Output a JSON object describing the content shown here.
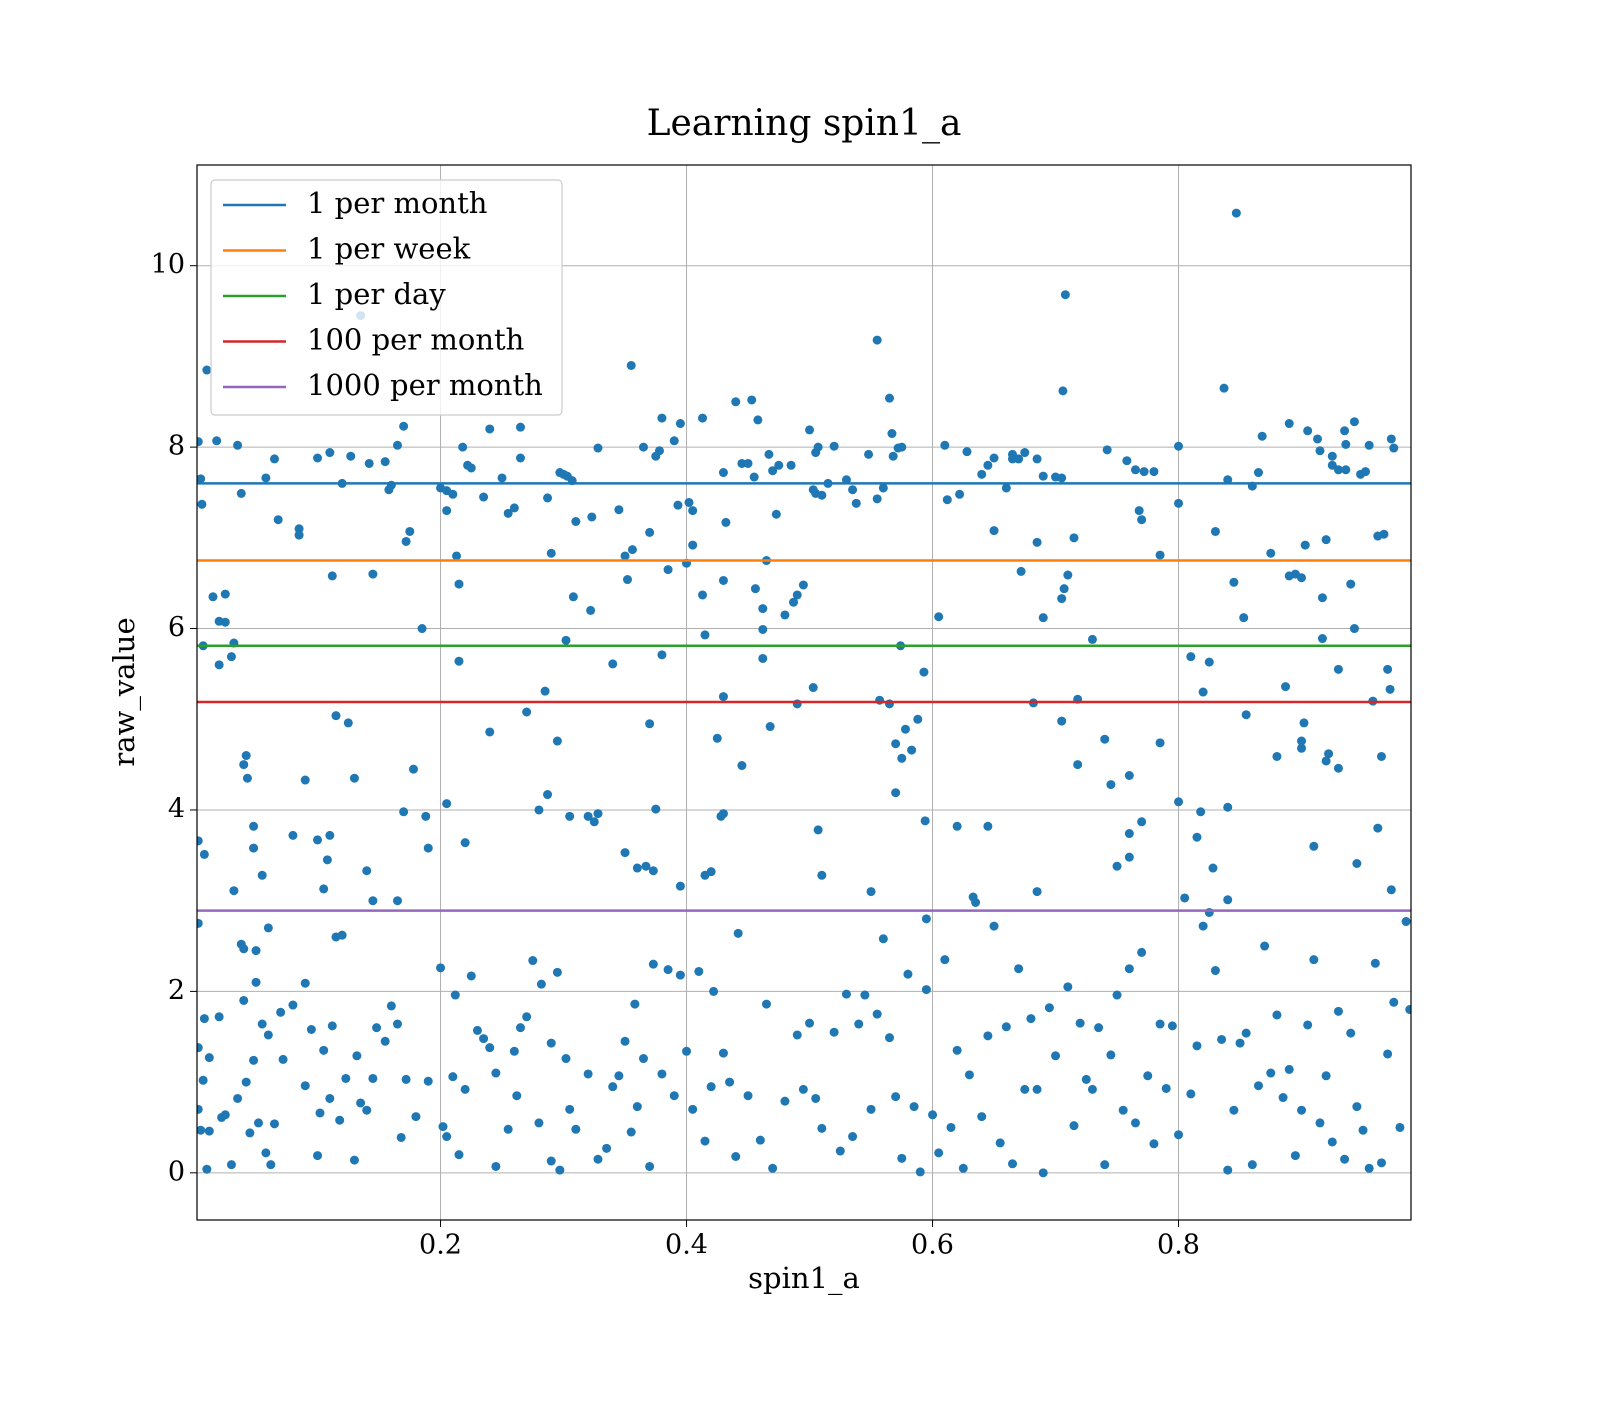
{
  "chart_data": {
    "type": "scatter",
    "title": "Learning spin1_a",
    "xlabel": "spin1_a",
    "ylabel": "raw_value",
    "xlim": [
      0.002,
      0.989
    ],
    "ylim": [
      -0.52,
      11.11
    ],
    "xticks": [
      0.2,
      0.4,
      0.6,
      0.8
    ],
    "yticks": [
      0,
      2,
      4,
      6,
      8,
      10
    ],
    "grid": true,
    "legend": "upper left",
    "color": "#1f77b4",
    "x": [
      0.003,
      0.005,
      0.006,
      0.01,
      0.015,
      0.018,
      0.02,
      0.02,
      0.025,
      0.025,
      0.03,
      0.032,
      0.035,
      0.038,
      0.007,
      0.008,
      0.003,
      0.003,
      0.04,
      0.042,
      0.043,
      0.048,
      0.048,
      0.032,
      0.038,
      0.04,
      0.05,
      0.055,
      0.06,
      0.058,
      0.065,
      0.068,
      0.085,
      0.085,
      0.08,
      0.09,
      0.1,
      0.11,
      0.112,
      0.115,
      0.125,
      0.12,
      0.127,
      0.135,
      0.13,
      0.11,
      0.108,
      0.105,
      0.1,
      0.115,
      0.12,
      0.14,
      0.145,
      0.142,
      0.145,
      0.155,
      0.16,
      0.158,
      0.165,
      0.17,
      0.172,
      0.175,
      0.178,
      0.185,
      0.188,
      0.19,
      0.17,
      0.165,
      0.2,
      0.205,
      0.21,
      0.205,
      0.213,
      0.215,
      0.215,
      0.218,
      0.222,
      0.225,
      0.22,
      0.205,
      0.235,
      0.24,
      0.25,
      0.255,
      0.26,
      0.265,
      0.265,
      0.27,
      0.24,
      0.28,
      0.287,
      0.285,
      0.287,
      0.29,
      0.297,
      0.3,
      0.303,
      0.307,
      0.308,
      0.31,
      0.302,
      0.295,
      0.305,
      0.32,
      0.325,
      0.328,
      0.322,
      0.323,
      0.328,
      0.345,
      0.35,
      0.352,
      0.355,
      0.356,
      0.34,
      0.35,
      0.36,
      0.367,
      0.373,
      0.37,
      0.375,
      0.365,
      0.37,
      0.375,
      0.378,
      0.38,
      0.38,
      0.385,
      0.39,
      0.393,
      0.395,
      0.4,
      0.402,
      0.405,
      0.405,
      0.395,
      0.413,
      0.413,
      0.415,
      0.415,
      0.42,
      0.425,
      0.428,
      0.43,
      0.43,
      0.43,
      0.432,
      0.43,
      0.44,
      0.445,
      0.445,
      0.45,
      0.453,
      0.455,
      0.456,
      0.458,
      0.462,
      0.462,
      0.462,
      0.465,
      0.467,
      0.468,
      0.47,
      0.473,
      0.475,
      0.48,
      0.485,
      0.487,
      0.49,
      0.49,
      0.495,
      0.5,
      0.503,
      0.505,
      0.505,
      0.507,
      0.51,
      0.503,
      0.507,
      0.51,
      0.515,
      0.52,
      0.53,
      0.535,
      0.538,
      0.548,
      0.55,
      0.555,
      0.555,
      0.557,
      0.56,
      0.565,
      0.565,
      0.567,
      0.568,
      0.57,
      0.57,
      0.572,
      0.574,
      0.575,
      0.575,
      0.578,
      0.583,
      0.588,
      0.593,
      0.594,
      0.595,
      0.605,
      0.61,
      0.612,
      0.622,
      0.62,
      0.628,
      0.633,
      0.64,
      0.645,
      0.645,
      0.65,
      0.65,
      0.66,
      0.665,
      0.665,
      0.67,
      0.672,
      0.675,
      0.685,
      0.685,
      0.682,
      0.685,
      0.69,
      0.69,
      0.7,
      0.705,
      0.705,
      0.707,
      0.708,
      0.706,
      0.71,
      0.715,
      0.705,
      0.718,
      0.718,
      0.73,
      0.74,
      0.742,
      0.745,
      0.75,
      0.758,
      0.76,
      0.76,
      0.76,
      0.765,
      0.768,
      0.77,
      0.77,
      0.772,
      0.78,
      0.785,
      0.785,
      0.8,
      0.8,
      0.8,
      0.81,
      0.815,
      0.818,
      0.82,
      0.825,
      0.828,
      0.83,
      0.837,
      0.84,
      0.84,
      0.84,
      0.845,
      0.847,
      0.853,
      0.855,
      0.86,
      0.865,
      0.868,
      0.875,
      0.88,
      0.887,
      0.89,
      0.89,
      0.895,
      0.9,
      0.9,
      0.902,
      0.9,
      0.903,
      0.905,
      0.91,
      0.913,
      0.915,
      0.917,
      0.917,
      0.92,
      0.92,
      0.922,
      0.925,
      0.925,
      0.93,
      0.93,
      0.93,
      0.935,
      0.936,
      0.936,
      0.94,
      0.943,
      0.943,
      0.945,
      0.948,
      0.952,
      0.955,
      0.958,
      0.962,
      0.962,
      0.965,
      0.967,
      0.97,
      0.972,
      0.973,
      0.975,
      0.973,
      0.985,
      0.988,
      0.003,
      0.003,
      0.005,
      0.007,
      0.008,
      0.01,
      0.012,
      0.012,
      0.02,
      0.022,
      0.025,
      0.03,
      0.035,
      0.04,
      0.042,
      0.045,
      0.048,
      0.05,
      0.052,
      0.055,
      0.058,
      0.06,
      0.062,
      0.065,
      0.07,
      0.072,
      0.08,
      0.09,
      0.09,
      0.095,
      0.1,
      0.102,
      0.105,
      0.11,
      0.112,
      0.118,
      0.123,
      0.13,
      0.132,
      0.135,
      0.14,
      0.145,
      0.148,
      0.155,
      0.16,
      0.165,
      0.168,
      0.172,
      0.18,
      0.19,
      0.2,
      0.202,
      0.205,
      0.21,
      0.212,
      0.215,
      0.22,
      0.225,
      0.23,
      0.235,
      0.24,
      0.245,
      0.245,
      0.255,
      0.26,
      0.262,
      0.265,
      0.27,
      0.275,
      0.28,
      0.282,
      0.29,
      0.29,
      0.295,
      0.297,
      0.302,
      0.305,
      0.31,
      0.32,
      0.328,
      0.335,
      0.34,
      0.345,
      0.35,
      0.355,
      0.358,
      0.36,
      0.365,
      0.37,
      0.373,
      0.38,
      0.385,
      0.39,
      0.395,
      0.4,
      0.405,
      0.41,
      0.415,
      0.42,
      0.422,
      0.43,
      0.435,
      0.44,
      0.442,
      0.45,
      0.46,
      0.465,
      0.47,
      0.48,
      0.49,
      0.495,
      0.5,
      0.505,
      0.51,
      0.52,
      0.525,
      0.53,
      0.535,
      0.54,
      0.545,
      0.55,
      0.555,
      0.56,
      0.565,
      0.57,
      0.575,
      0.58,
      0.585,
      0.59,
      0.595,
      0.6,
      0.605,
      0.61,
      0.615,
      0.62,
      0.625,
      0.63,
      0.635,
      0.64,
      0.645,
      0.65,
      0.655,
      0.66,
      0.665,
      0.67,
      0.675,
      0.68,
      0.685,
      0.69,
      0.695,
      0.7,
      0.71,
      0.715,
      0.72,
      0.725,
      0.73,
      0.735,
      0.74,
      0.745,
      0.75,
      0.755,
      0.76,
      0.765,
      0.77,
      0.775,
      0.78,
      0.785,
      0.79,
      0.795,
      0.8,
      0.805,
      0.81,
      0.815,
      0.82,
      0.825,
      0.83,
      0.835,
      0.84,
      0.845,
      0.85,
      0.855,
      0.86,
      0.865,
      0.87,
      0.875,
      0.88,
      0.885,
      0.89,
      0.895,
      0.9,
      0.905,
      0.91,
      0.915,
      0.92,
      0.925,
      0.93,
      0.935,
      0.94,
      0.945,
      0.95,
      0.955,
      0.96,
      0.965,
      0.97,
      0.975,
      0.98
    ],
    "values": [
      8.06,
      7.65,
      7.37,
      8.85,
      6.35,
      8.07,
      6.08,
      5.6,
      6.07,
      6.38,
      5.69,
      5.84,
      8.02,
      7.49,
      5.81,
      3.51,
      3.66,
      2.75,
      4.5,
      4.6,
      4.35,
      3.82,
      3.58,
      3.11,
      2.52,
      2.47,
      2.45,
      3.28,
      2.7,
      7.66,
      7.87,
      7.2,
      7.1,
      7.03,
      3.72,
      4.33,
      7.88,
      7.94,
      6.58,
      5.04,
      4.96,
      7.6,
      7.9,
      9.45,
      4.35,
      3.72,
      3.45,
      3.13,
      3.67,
      2.6,
      2.62,
      3.33,
      3.0,
      7.82,
      6.6,
      7.84,
      7.58,
      7.53,
      8.02,
      8.23,
      6.96,
      7.07,
      4.45,
      6.0,
      3.93,
      3.58,
      3.98,
      3.0,
      7.55,
      7.52,
      7.48,
      7.3,
      6.8,
      6.49,
      5.64,
      8.0,
      7.8,
      7.77,
      3.64,
      4.07,
      7.45,
      8.2,
      7.66,
      7.27,
      7.33,
      7.88,
      8.22,
      5.08,
      4.86,
      4.0,
      4.17,
      5.31,
      7.44,
      6.83,
      7.72,
      7.7,
      7.68,
      7.63,
      6.35,
      7.18,
      5.87,
      4.76,
      3.93,
      3.93,
      3.87,
      3.96,
      6.2,
      7.23,
      7.99,
      7.31,
      6.8,
      6.54,
      8.9,
      6.87,
      5.61,
      3.53,
      3.36,
      3.38,
      3.33,
      4.95,
      4.01,
      8.0,
      7.06,
      7.9,
      7.96,
      8.32,
      5.71,
      6.65,
      8.07,
      7.36,
      8.26,
      6.72,
      7.39,
      7.3,
      6.92,
      3.16,
      8.32,
      6.37,
      5.93,
      3.28,
      3.32,
      4.79,
      3.93,
      3.96,
      5.25,
      6.53,
      7.17,
      7.72,
      8.5,
      4.49,
      7.82,
      7.82,
      8.52,
      7.67,
      6.44,
      8.3,
      6.22,
      5.99,
      5.67,
      6.75,
      7.92,
      4.92,
      7.74,
      7.26,
      7.8,
      6.15,
      7.8,
      6.29,
      6.37,
      5.17,
      6.48,
      8.19,
      7.53,
      7.49,
      7.94,
      8.0,
      7.47,
      5.35,
      3.78,
      3.28,
      7.6,
      8.01,
      7.64,
      7.53,
      7.38,
      7.92,
      3.1,
      9.18,
      7.43,
      5.21,
      7.55,
      5.17,
      8.54,
      8.15,
      7.9,
      4.73,
      4.19,
      7.99,
      5.81,
      8.0,
      4.57,
      4.89,
      4.66,
      5.0,
      5.52,
      3.88,
      2.8,
      6.13,
      8.02,
      7.42,
      7.48,
      3.82,
      7.95,
      3.04,
      7.7,
      3.82,
      7.8,
      7.88,
      7.08,
      7.55,
      7.87,
      7.92,
      7.87,
      6.63,
      7.94,
      7.87,
      6.95,
      5.18,
      3.1,
      6.12,
      7.68,
      7.67,
      7.66,
      6.33,
      6.44,
      9.68,
      8.62,
      6.59,
      7.0,
      4.98,
      5.22,
      4.5,
      5.88,
      4.78,
      7.97,
      4.28,
      3.38,
      7.85,
      4.38,
      3.74,
      3.48,
      7.75,
      7.3,
      7.2,
      3.87,
      7.73,
      7.73,
      6.81,
      4.74,
      8.01,
      7.38,
      4.09,
      5.69,
      3.7,
      3.98,
      5.3,
      5.63,
      3.36,
      7.07,
      8.65,
      7.64,
      3.01,
      4.03,
      6.51,
      10.58,
      6.12,
      5.05,
      7.57,
      7.72,
      8.12,
      6.83,
      4.59,
      5.36,
      8.26,
      6.58,
      6.6,
      6.56,
      4.76,
      4.96,
      4.68,
      6.92,
      8.18,
      3.6,
      8.09,
      7.96,
      5.89,
      6.34,
      6.98,
      4.54,
      4.62,
      7.8,
      7.9,
      7.75,
      4.46,
      5.55,
      8.18,
      8.03,
      7.75,
      6.49,
      8.28,
      6.0,
      3.41,
      7.7,
      7.73,
      8.02,
      5.2,
      7.02,
      3.8,
      4.59,
      7.04,
      5.55,
      5.33,
      8.09,
      7.99,
      3.12,
      2.77,
      1.8,
      1.38,
      0.7,
      0.47,
      1.02,
      1.7,
      0.04,
      1.27,
      0.46,
      1.72,
      0.61,
      0.64,
      0.09,
      0.82,
      1.9,
      1.0,
      0.44,
      1.24,
      2.1,
      0.55,
      1.64,
      0.22,
      1.52,
      0.09,
      0.54,
      1.77,
      1.25,
      1.85,
      2.09,
      0.96,
      1.58,
      0.19,
      0.66,
      1.35,
      0.82,
      1.62,
      0.58,
      1.04,
      0.14,
      1.29,
      0.77,
      0.69,
      1.04,
      1.6,
      1.45,
      1.84,
      1.64,
      0.39,
      1.03,
      0.62,
      1.01,
      2.26,
      0.51,
      0.4,
      1.06,
      1.96,
      0.2,
      0.92,
      2.17,
      1.57,
      1.48,
      1.38,
      1.1,
      0.07,
      0.48,
      1.34,
      0.85,
      1.6,
      1.72,
      2.34,
      0.55,
      2.08,
      1.43,
      0.13,
      2.21,
      0.03,
      1.26,
      0.7,
      0.48,
      1.09,
      0.15,
      0.27,
      0.95,
      1.07,
      1.45,
      0.45,
      1.86,
      0.73,
      1.26,
      0.07,
      2.3,
      1.09,
      2.24,
      0.85,
      2.18,
      1.34,
      0.7,
      2.22,
      0.35,
      0.95,
      2.0,
      1.32,
      1.0,
      0.18,
      2.64,
      0.85,
      0.36,
      1.86,
      0.05,
      0.79,
      1.52,
      0.92,
      1.65,
      0.82,
      0.49,
      1.55,
      0.24,
      1.97,
      0.4,
      1.64,
      1.96,
      0.7,
      1.75,
      2.58,
      1.49,
      0.84,
      0.16,
      2.19,
      0.73,
      0.01,
      2.02,
      0.64,
      0.22,
      2.35,
      0.5,
      1.35,
      0.05,
      1.08,
      2.98,
      0.62,
      1.51,
      2.72,
      0.33,
      1.61,
      0.1,
      2.25,
      0.92,
      1.7,
      0.92,
      0.0,
      1.82,
      1.29,
      2.05,
      0.52,
      1.65,
      1.03,
      0.92,
      1.6,
      0.09,
      1.3,
      1.96,
      0.69,
      2.25,
      0.55,
      2.43,
      1.07,
      0.32,
      1.64,
      0.93,
      1.62,
      0.42,
      3.03,
      0.87,
      1.4,
      2.72,
      2.87,
      2.23,
      1.47,
      0.03,
      0.69,
      1.43,
      1.54,
      0.09,
      0.96,
      2.5,
      1.1,
      1.74,
      0.83,
      1.14,
      0.19,
      0.69,
      1.63,
      2.35,
      0.55,
      1.07,
      0.34,
      1.78,
      0.15,
      1.54,
      0.73,
      0.47,
      0.05,
      2.31,
      0.11,
      1.31,
      1.88,
      0.5
    ],
    "hlines": [
      {
        "name": "1 per month",
        "color": "#1f77b4",
        "value": 7.6
      },
      {
        "name": "1 per week",
        "color": "#ff7f0e",
        "value": 6.75
      },
      {
        "name": "1 per day",
        "color": "#2ca02c",
        "value": 5.81
      },
      {
        "name": "100 per month",
        "color": "#d62728",
        "value": 5.19
      },
      {
        "name": "1000 per month",
        "color": "#9467bd",
        "value": 2.89
      }
    ]
  }
}
